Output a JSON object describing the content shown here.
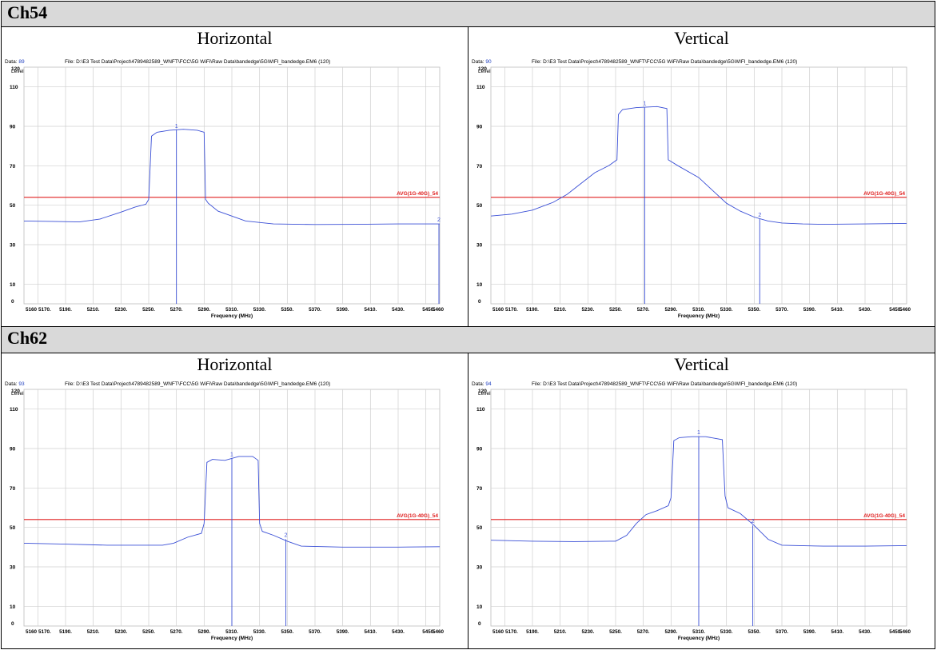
{
  "sections": [
    {
      "title": "Ch54"
    },
    {
      "title": "Ch62"
    }
  ],
  "chart_data": [
    {
      "type": "line",
      "panel_title": "Horizontal",
      "data_label": "Data:",
      "data_num": "89",
      "file": "File: D:\\E3 Test Data\\Project\\4789482589_WNFT\\FCC\\5G WiFi\\Raw Data\\bandedge\\5GWIFI_bandedge.EM6  (120)",
      "date": "Date: 06-02-2020",
      "ylabel": "Level (dBuV/m)",
      "xlabel": "Frequency (MHz)",
      "xlim": [
        5160,
        5460
      ],
      "ylim": [
        0,
        120
      ],
      "yticks": [
        "0",
        "10",
        "30",
        "50",
        "70",
        "90",
        "110",
        "120"
      ],
      "xticks": [
        "5160",
        "5170.",
        "5190.",
        "5210.",
        "5230.",
        "5250.",
        "5270.",
        "5290.",
        "5310.",
        "5330.",
        "5350.",
        "5370.",
        "5390.",
        "5410.",
        "5430.",
        "5450.",
        "5460"
      ],
      "limit": {
        "label": "AVG(1G-40G)_54",
        "value": 54
      },
      "markers": [
        {
          "label": "1",
          "x": 5270,
          "y": 88
        },
        {
          "label": "2",
          "x": 5460,
          "y": 40.5
        }
      ],
      "series": [
        {
          "x": [
            5160,
            5180,
            5200,
            5215,
            5230,
            5240,
            5248,
            5250,
            5252,
            5256,
            5265,
            5275,
            5285,
            5290,
            5291,
            5293,
            5300,
            5320,
            5340,
            5370,
            5400,
            5430,
            5460
          ],
          "y": [
            42,
            41.8,
            41.5,
            43,
            46.5,
            49,
            50.5,
            53,
            85,
            87,
            88,
            88.5,
            88,
            87,
            53,
            51,
            47,
            42,
            40.5,
            40.2,
            40.3,
            40.5,
            40.5
          ]
        }
      ]
    },
    {
      "type": "line",
      "panel_title": "Vertical",
      "data_label": "Data:",
      "data_num": "90",
      "file": "File: D:\\E3 Test Data\\Project\\4789482589_WNFT\\FCC\\5G WiFi\\Raw Data\\bandedge\\5GWIFI_bandedge.EM6  (120)",
      "date": "Date: 06-02-2020",
      "ylabel": "Level (dBuV/m)",
      "xlabel": "Frequency (MHz)",
      "xlim": [
        5160,
        5460
      ],
      "ylim": [
        0,
        120
      ],
      "yticks": [
        "0",
        "10",
        "30",
        "50",
        "70",
        "90",
        "110",
        "120"
      ],
      "xticks": [
        "5160",
        "5170.",
        "5190.",
        "5210.",
        "5230.",
        "5250.",
        "5270.",
        "5290.",
        "5310.",
        "5330.",
        "5350.",
        "5370.",
        "5390.",
        "5410.",
        "5430.",
        "5450.",
        "5460"
      ],
      "limit": {
        "label": "AVG(1G-40G)_54",
        "value": 54
      },
      "markers": [
        {
          "label": "1",
          "x": 5271,
          "y": 99.5
        },
        {
          "label": "2",
          "x": 5354,
          "y": 43
        }
      ],
      "series": [
        {
          "x": [
            5160,
            5175,
            5190,
            5205,
            5215,
            5225,
            5235,
            5245,
            5251,
            5252,
            5255,
            5265,
            5280,
            5287,
            5288,
            5295,
            5310,
            5320,
            5330,
            5340,
            5350,
            5360,
            5370,
            5385,
            5400,
            5430,
            5460
          ],
          "y": [
            44.5,
            45.5,
            47.5,
            51.5,
            55.5,
            61,
            66.5,
            70,
            73,
            96,
            98.5,
            99.5,
            100,
            99,
            73,
            70,
            64,
            57.5,
            51,
            47,
            44,
            42,
            41,
            40.5,
            40.3,
            40.5,
            40.8
          ]
        }
      ]
    },
    {
      "type": "line",
      "panel_title": "Horizontal",
      "data_label": "Data:",
      "data_num": "93",
      "file": "File: D:\\E3 Test Data\\Project\\4789482589_WNFT\\FCC\\5G WiFi\\Raw Data\\bandedge\\5GWIFI_bandedge.EM6  (120)",
      "date": "Date: 06-02-2020",
      "ylabel": "Level (dBuV/m)",
      "xlabel": "Frequency (MHz)",
      "xlim": [
        5160,
        5460
      ],
      "ylim": [
        0,
        120
      ],
      "yticks": [
        "0",
        "10",
        "30",
        "50",
        "70",
        "90",
        "110",
        "120"
      ],
      "xticks": [
        "5160",
        "5170.",
        "5190.",
        "5210.",
        "5230.",
        "5250.",
        "5270.",
        "5290.",
        "5310.",
        "5330.",
        "5350.",
        "5370.",
        "5390.",
        "5410.",
        "5430.",
        "5450.",
        "5460"
      ],
      "limit": {
        "label": "AVG(1G-40G)_54",
        "value": 54
      },
      "markers": [
        {
          "label": "1",
          "x": 5310,
          "y": 85
        },
        {
          "label": "2",
          "x": 5349,
          "y": 44
        }
      ],
      "series": [
        {
          "x": [
            5160,
            5190,
            5220,
            5260,
            5268,
            5278,
            5288,
            5290,
            5292,
            5296,
            5305,
            5315,
            5325,
            5329,
            5330,
            5332,
            5340,
            5350,
            5360,
            5390,
            5430,
            5460
          ],
          "y": [
            42,
            41.5,
            41,
            41,
            42,
            45,
            47,
            52,
            83,
            84.5,
            84,
            86,
            86,
            84,
            52,
            48,
            46,
            43,
            40.5,
            40,
            40,
            40.2
          ]
        }
      ]
    },
    {
      "type": "line",
      "panel_title": "Vertical",
      "data_label": "Data:",
      "data_num": "94",
      "file": "File: D:\\E3 Test Data\\Project\\4789482589_WNFT\\FCC\\5G WiFi\\Raw Data\\bandedge\\5GWIFI_bandedge.EM6  (120)",
      "date": "Date: 06-02-2020",
      "ylabel": "Level (dBuV/m)",
      "xlabel": "Frequency (MHz)",
      "xlim": [
        5160,
        5460
      ],
      "ylim": [
        0,
        120
      ],
      "yticks": [
        "0",
        "10",
        "30",
        "50",
        "70",
        "90",
        "110",
        "120"
      ],
      "xticks": [
        "5160",
        "5170.",
        "5190.",
        "5210.",
        "5230.",
        "5250.",
        "5270.",
        "5290.",
        "5310.",
        "5330.",
        "5350.",
        "5370.",
        "5390.",
        "5410.",
        "5430.",
        "5450.",
        "5460"
      ],
      "limit": {
        "label": "AVG(1G-40G)_54",
        "value": 54
      },
      "markers": [
        {
          "label": "1",
          "x": 5310,
          "y": 96
        },
        {
          "label": "2",
          "x": 5349,
          "y": 51
        }
      ],
      "series": [
        {
          "x": [
            5160,
            5190,
            5220,
            5250,
            5258,
            5265,
            5272,
            5280,
            5288,
            5290,
            5292,
            5296,
            5305,
            5315,
            5327,
            5329,
            5331,
            5340,
            5350,
            5360,
            5370,
            5400,
            5430,
            5460
          ],
          "y": [
            43.5,
            43,
            42.8,
            43,
            46,
            52,
            56.5,
            58.5,
            61,
            65,
            94,
            95.5,
            96,
            96,
            94.5,
            66,
            60,
            57,
            51,
            44,
            41,
            40.5,
            40.5,
            40.8
          ]
        }
      ]
    }
  ]
}
